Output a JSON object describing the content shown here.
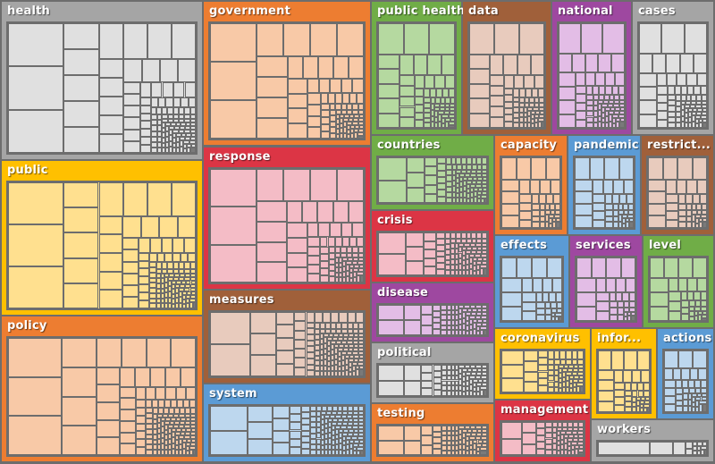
{
  "chart_data": {
    "type": "treemap",
    "title": "",
    "items": [
      {
        "label": "health",
        "color": "#a5a5a5",
        "fill": "#e0e0e0"
      },
      {
        "label": "government",
        "color": "#ed7d31",
        "fill": "#f8c9a7"
      },
      {
        "label": "public",
        "color": "#ffc000",
        "fill": "#ffe08f"
      },
      {
        "label": "policy",
        "color": "#ed7d31",
        "fill": "#f8c9a7"
      },
      {
        "label": "response",
        "color": "#dc3545",
        "fill": "#f4bcc6"
      },
      {
        "label": "measures",
        "color": "#a0603a",
        "fill": "#e8cbbd"
      },
      {
        "label": "system",
        "color": "#5b9bd5",
        "fill": "#bdd7ee"
      },
      {
        "label": "public health",
        "color": "#70ad47",
        "fill": "#b5d9a0"
      },
      {
        "label": "data",
        "color": "#a0603a",
        "fill": "#e8cbbd"
      },
      {
        "label": "national",
        "color": "#9e48a0",
        "fill": "#e3bde6"
      },
      {
        "label": "cases",
        "color": "#a5a5a5",
        "fill": "#e0e0e0"
      },
      {
        "label": "countries",
        "color": "#70ad47",
        "fill": "#b5d9a0"
      },
      {
        "label": "crisis",
        "color": "#dc3545",
        "fill": "#f4bcc6"
      },
      {
        "label": "disease",
        "color": "#9e48a0",
        "fill": "#e3bde6"
      },
      {
        "label": "political",
        "color": "#a5a5a5",
        "fill": "#e0e0e0"
      },
      {
        "label": "testing",
        "color": "#ed7d31",
        "fill": "#f8c9a7"
      },
      {
        "label": "capacity",
        "color": "#ed7d31",
        "fill": "#f8c9a7"
      },
      {
        "label": "pandemic",
        "color": "#5b9bd5",
        "fill": "#bdd7ee"
      },
      {
        "label": "restrict...",
        "color": "#a0603a",
        "fill": "#e8cbbd"
      },
      {
        "label": "effects",
        "color": "#5b9bd5",
        "fill": "#bdd7ee"
      },
      {
        "label": "services",
        "color": "#9e48a0",
        "fill": "#e3bde6"
      },
      {
        "label": "level",
        "color": "#70ad47",
        "fill": "#b5d9a0"
      },
      {
        "label": "coronavirus",
        "color": "#ffc000",
        "fill": "#ffe08f"
      },
      {
        "label": "management",
        "color": "#dc3545",
        "fill": "#f4bcc6"
      },
      {
        "label": "infor...",
        "color": "#ffc000",
        "fill": "#ffe08f"
      },
      {
        "label": "actions",
        "color": "#5b9bd5",
        "fill": "#bdd7ee"
      },
      {
        "label": "workers",
        "color": "#a5a5a5",
        "fill": "#e0e0e0"
      }
    ]
  }
}
